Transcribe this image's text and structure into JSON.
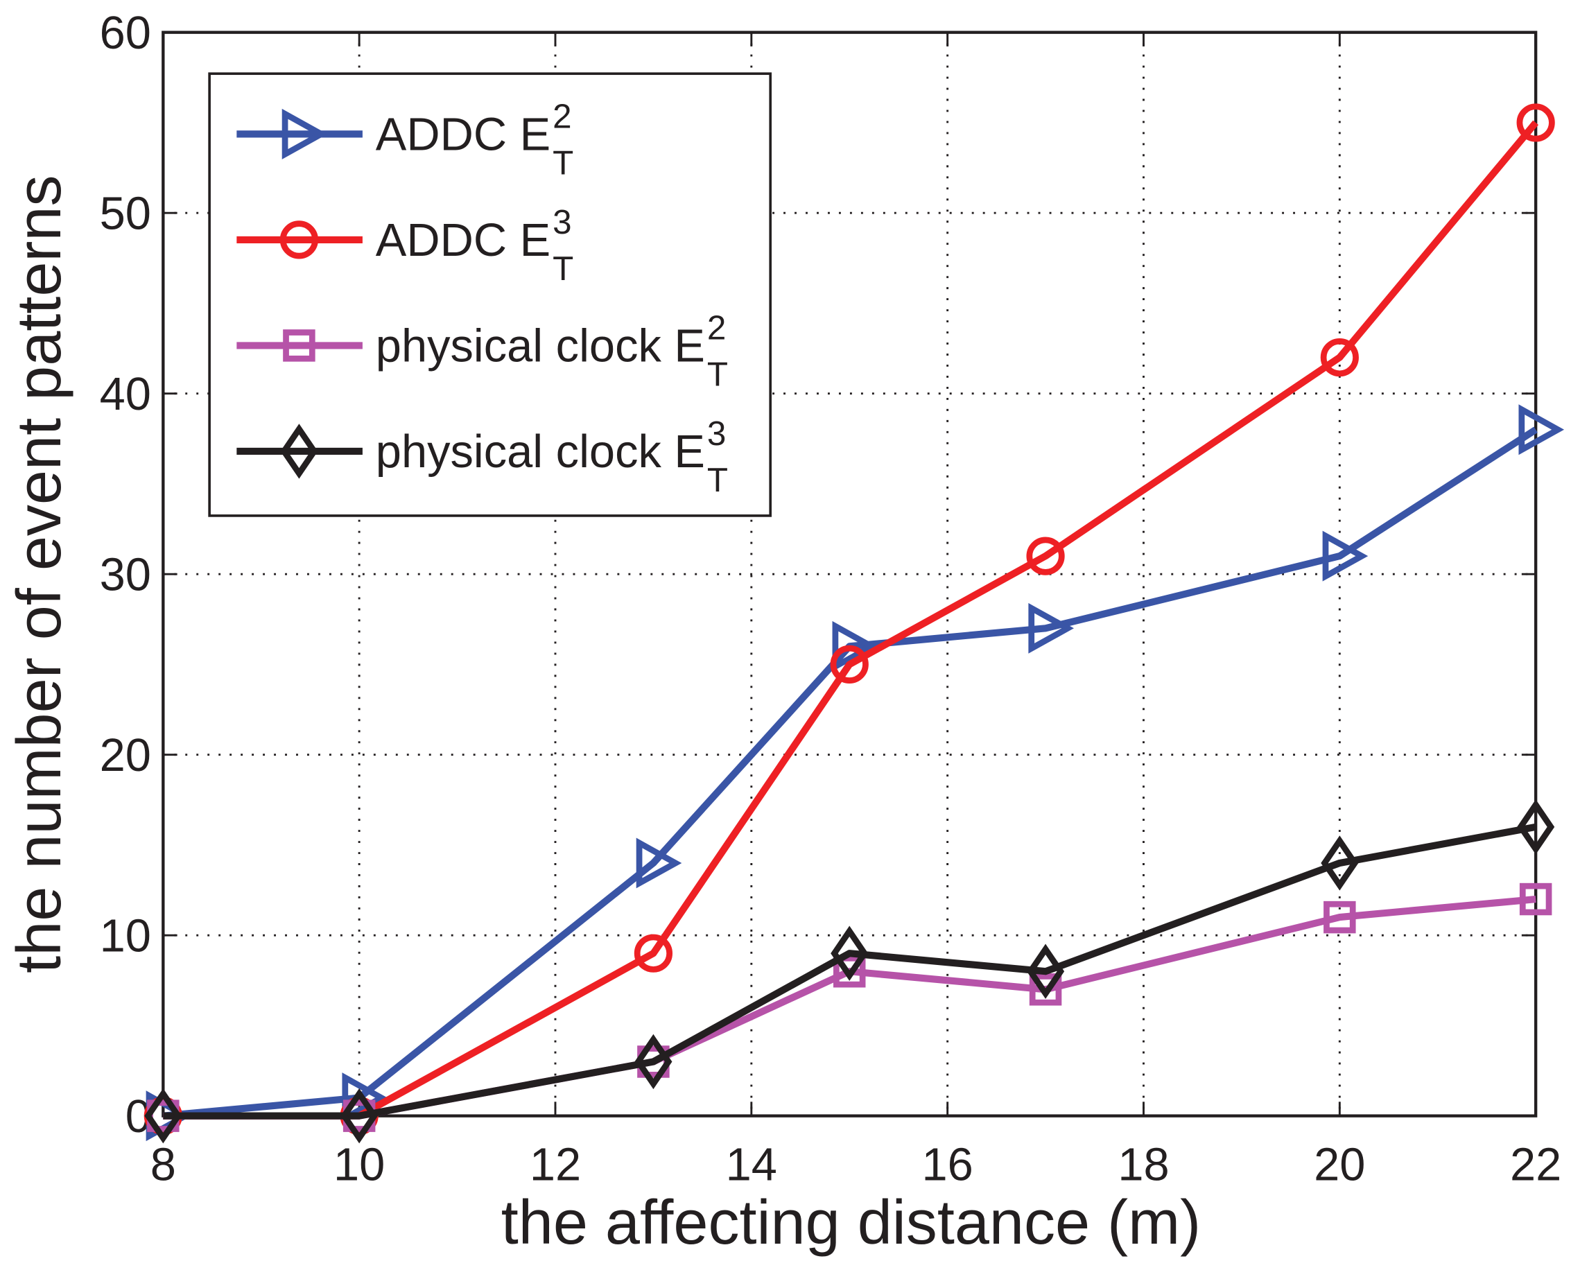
{
  "chart_data": {
    "type": "line",
    "title": "",
    "xlabel": "the affecting distance (m)",
    "ylabel": "the number of event patterns",
    "xlim": [
      8,
      22
    ],
    "ylim": [
      0,
      60
    ],
    "xticks": [
      8,
      10,
      12,
      14,
      16,
      18,
      20,
      22
    ],
    "yticks": [
      0,
      10,
      20,
      30,
      40,
      50,
      60
    ],
    "grid": true,
    "legend_position": "top-left",
    "x": [
      8,
      10,
      13,
      15,
      17,
      20,
      22
    ],
    "series": [
      {
        "name": "ADDC E_T^2",
        "base": "ADDC E",
        "sup": "2",
        "sub": "T",
        "color": "#3a55a6",
        "marker": "triangle-right",
        "values": [
          0,
          1,
          14,
          26,
          27,
          31,
          38
        ]
      },
      {
        "name": "ADDC E_T^3",
        "base": "ADDC E",
        "sup": "3",
        "sub": "T",
        "color": "#ee2024",
        "marker": "circle",
        "values": [
          0,
          0,
          9,
          25,
          31,
          42,
          55
        ]
      },
      {
        "name": "physical clock E_T^2",
        "base": "physical clock E",
        "sup": "2",
        "sub": "T",
        "color": "#b653a8",
        "marker": "square",
        "values": [
          0,
          0,
          3,
          8,
          7,
          11,
          12
        ]
      },
      {
        "name": "physical clock E_T^3",
        "base": "physical clock E",
        "sup": "3",
        "sub": "T",
        "color": "#231f20",
        "marker": "diamond",
        "values": [
          0,
          0,
          3,
          9,
          8,
          14,
          16
        ]
      }
    ]
  }
}
